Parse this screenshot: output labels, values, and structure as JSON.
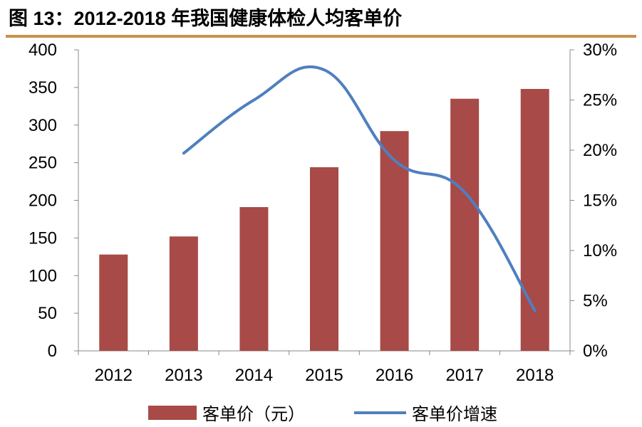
{
  "title": "图 13：2012-2018 年我国健康体检人均客单价",
  "colors": {
    "bar": "#a84a47",
    "line": "#4f7fc0",
    "rule": "#c8924a"
  },
  "chart_data": {
    "type": "bar+line",
    "title": "图 13：2012-2018 年我国健康体检人均客单价",
    "categories": [
      "2012",
      "2013",
      "2014",
      "2015",
      "2016",
      "2017",
      "2018"
    ],
    "series": [
      {
        "name": "客单价（元）",
        "type": "bar",
        "axis": "left",
        "values": [
          128,
          152,
          191,
          244,
          292,
          335,
          348
        ]
      },
      {
        "name": "客单价增速",
        "type": "line",
        "axis": "right",
        "values": [
          null,
          19.7,
          25.0,
          28.0,
          19.0,
          15.8,
          4.0
        ]
      }
    ],
    "left_axis": {
      "ylim": [
        0,
        400
      ],
      "ticks": [
        "0",
        "50",
        "100",
        "150",
        "200",
        "250",
        "300",
        "350",
        "400"
      ]
    },
    "right_axis": {
      "ylim": [
        0,
        30
      ],
      "ticks": [
        "0%",
        "5%",
        "10%",
        "15%",
        "20%",
        "25%",
        "30%"
      ]
    },
    "grid": false,
    "legend": "bottom"
  }
}
